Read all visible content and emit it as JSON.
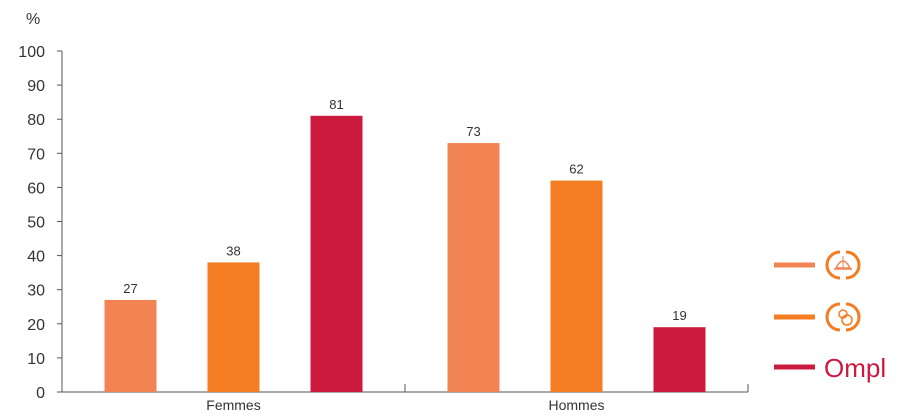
{
  "chart_data": {
    "type": "bar",
    "ylabel": "%",
    "ylim": [
      0,
      100
    ],
    "yticks": [
      0,
      10,
      20,
      30,
      40,
      50,
      60,
      70,
      80,
      90,
      100
    ],
    "categories": [
      "Femmes",
      "Hommes"
    ],
    "series": [
      {
        "legend_icon": "hardhat-worker-icon",
        "color": "#F28454",
        "values": [
          27,
          73
        ]
      },
      {
        "legend_icon": "worker-gear-icon",
        "color": "#F47C22",
        "values": [
          38,
          62
        ]
      },
      {
        "name": "Ompl",
        "color": "#CC1A3F",
        "values": [
          81,
          19
        ]
      }
    ],
    "legend_placement": "right",
    "grid": false
  }
}
